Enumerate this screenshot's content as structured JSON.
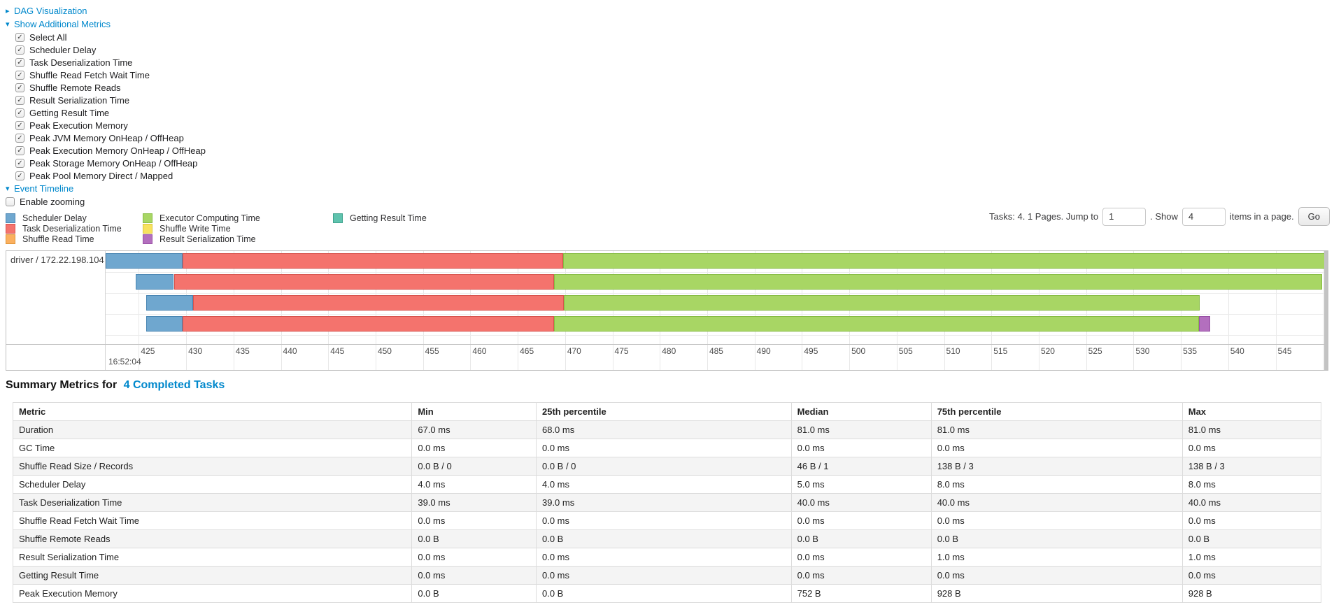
{
  "links": {
    "dag_label": "DAG Visualization",
    "additional_metrics_label": "Show Additional Metrics",
    "event_timeline_label": "Event Timeline"
  },
  "colors": {
    "link": "#0088cc",
    "table_stripe": "#f4f4f4",
    "gridline": "#e8e8e8"
  },
  "additional_metrics": {
    "items": [
      {
        "label": "Select All",
        "checked": true
      },
      {
        "label": "Scheduler Delay",
        "checked": true
      },
      {
        "label": "Task Deserialization Time",
        "checked": true
      },
      {
        "label": "Shuffle Read Fetch Wait Time",
        "checked": true
      },
      {
        "label": "Shuffle Remote Reads",
        "checked": true
      },
      {
        "label": "Result Serialization Time",
        "checked": true
      },
      {
        "label": "Getting Result Time",
        "checked": true
      },
      {
        "label": "Peak Execution Memory",
        "checked": true
      },
      {
        "label": "Peak JVM Memory OnHeap / OffHeap",
        "checked": true
      },
      {
        "label": "Peak Execution Memory OnHeap / OffHeap",
        "checked": true
      },
      {
        "label": "Peak Storage Memory OnHeap / OffHeap",
        "checked": true
      },
      {
        "label": "Peak Pool Memory Direct / Mapped",
        "checked": true
      }
    ]
  },
  "enable_zooming": {
    "label": "Enable zooming",
    "checked": false
  },
  "event_timeline": {
    "legend_columns": [
      [
        {
          "label": "Scheduler Delay",
          "color": "#6FA7CF",
          "border": "#4A86B3"
        },
        {
          "label": "Task Deserialization Time",
          "color": "#F4736D",
          "border": "#D8524C"
        },
        {
          "label": "Shuffle Read Time",
          "color": "#FBB05F",
          "border": "#DE9335"
        }
      ],
      [
        {
          "label": "Executor Computing Time",
          "color": "#A8D664",
          "border": "#86BC42"
        },
        {
          "label": "Shuffle Write Time",
          "color": "#F7E25E",
          "border": "#DCC63C"
        },
        {
          "label": "Result Serialization Time",
          "color": "#B36FBE",
          "border": "#9850A5"
        }
      ],
      [
        {
          "label": "Getting Result Time",
          "color": "#5FC3AE",
          "border": "#3EA28D"
        }
      ]
    ]
  },
  "pagination": {
    "prefix": "Tasks: 4. 1 Pages. Jump to",
    "jump_value": "1",
    "mid": ". Show",
    "show_value": "4",
    "suffix": "items in a page.",
    "go": "Go"
  },
  "chart_data": {
    "type": "gantt-timeline",
    "group_label": "driver / 172.22.198.104",
    "axis": {
      "min": 421.5,
      "max": 550.5,
      "tick_from": 425,
      "tick_to": 550,
      "tick_step": 5,
      "major_label": "16:52:04",
      "unit": "ms within second 16:52:04"
    },
    "segment_colors": {
      "scheduler_delay": {
        "fill": "#6FA7CF",
        "border": "#4A86B3"
      },
      "task_deserialization": {
        "fill": "#F4736D",
        "border": "#D8524C"
      },
      "executor_computing": {
        "fill": "#A8D664",
        "border": "#86BC42"
      },
      "result_serialization": {
        "fill": "#B36FBE",
        "border": "#9850A5"
      }
    },
    "tasks": [
      {
        "segments": [
          {
            "kind": "scheduler_delay",
            "start": 421.5,
            "end": 429.6
          },
          {
            "kind": "task_deserialization",
            "start": 429.6,
            "end": 469.8
          },
          {
            "kind": "executor_computing",
            "start": 469.8,
            "end": 550.5
          }
        ]
      },
      {
        "segments": [
          {
            "kind": "scheduler_delay",
            "start": 424.7,
            "end": 428.7
          },
          {
            "kind": "task_deserialization",
            "start": 428.7,
            "end": 468.8
          },
          {
            "kind": "executor_computing",
            "start": 468.8,
            "end": 549.9
          }
        ]
      },
      {
        "segments": [
          {
            "kind": "scheduler_delay",
            "start": 425.8,
            "end": 430.7
          },
          {
            "kind": "task_deserialization",
            "start": 430.7,
            "end": 469.9
          },
          {
            "kind": "executor_computing",
            "start": 469.9,
            "end": 537.0
          }
        ]
      },
      {
        "segments": [
          {
            "kind": "scheduler_delay",
            "start": 425.8,
            "end": 429.6
          },
          {
            "kind": "task_deserialization",
            "start": 429.6,
            "end": 468.8
          },
          {
            "kind": "executor_computing",
            "start": 468.8,
            "end": 536.9
          },
          {
            "kind": "result_serialization",
            "start": 536.9,
            "end": 538.1
          }
        ]
      }
    ]
  },
  "summary": {
    "heading_prefix": "Summary Metrics for",
    "heading_link": "4 Completed Tasks",
    "table": {
      "columns": [
        "Metric",
        "Min",
        "25th percentile",
        "Median",
        "75th percentile",
        "Max"
      ],
      "rows": [
        [
          "Duration",
          "67.0 ms",
          "68.0 ms",
          "81.0 ms",
          "81.0 ms",
          "81.0 ms"
        ],
        [
          "GC Time",
          "0.0 ms",
          "0.0 ms",
          "0.0 ms",
          "0.0 ms",
          "0.0 ms"
        ],
        [
          "Shuffle Read Size / Records",
          "0.0 B / 0",
          "0.0 B / 0",
          "46 B / 1",
          "138 B / 3",
          "138 B / 3"
        ],
        [
          "Scheduler Delay",
          "4.0 ms",
          "4.0 ms",
          "5.0 ms",
          "8.0 ms",
          "8.0 ms"
        ],
        [
          "Task Deserialization Time",
          "39.0 ms",
          "39.0 ms",
          "40.0 ms",
          "40.0 ms",
          "40.0 ms"
        ],
        [
          "Shuffle Read Fetch Wait Time",
          "0.0 ms",
          "0.0 ms",
          "0.0 ms",
          "0.0 ms",
          "0.0 ms"
        ],
        [
          "Shuffle Remote Reads",
          "0.0 B",
          "0.0 B",
          "0.0 B",
          "0.0 B",
          "0.0 B"
        ],
        [
          "Result Serialization Time",
          "0.0 ms",
          "0.0 ms",
          "0.0 ms",
          "1.0 ms",
          "1.0 ms"
        ],
        [
          "Getting Result Time",
          "0.0 ms",
          "0.0 ms",
          "0.0 ms",
          "0.0 ms",
          "0.0 ms"
        ],
        [
          "Peak Execution Memory",
          "0.0 B",
          "0.0 B",
          "752 B",
          "928 B",
          "928 B"
        ]
      ]
    }
  }
}
